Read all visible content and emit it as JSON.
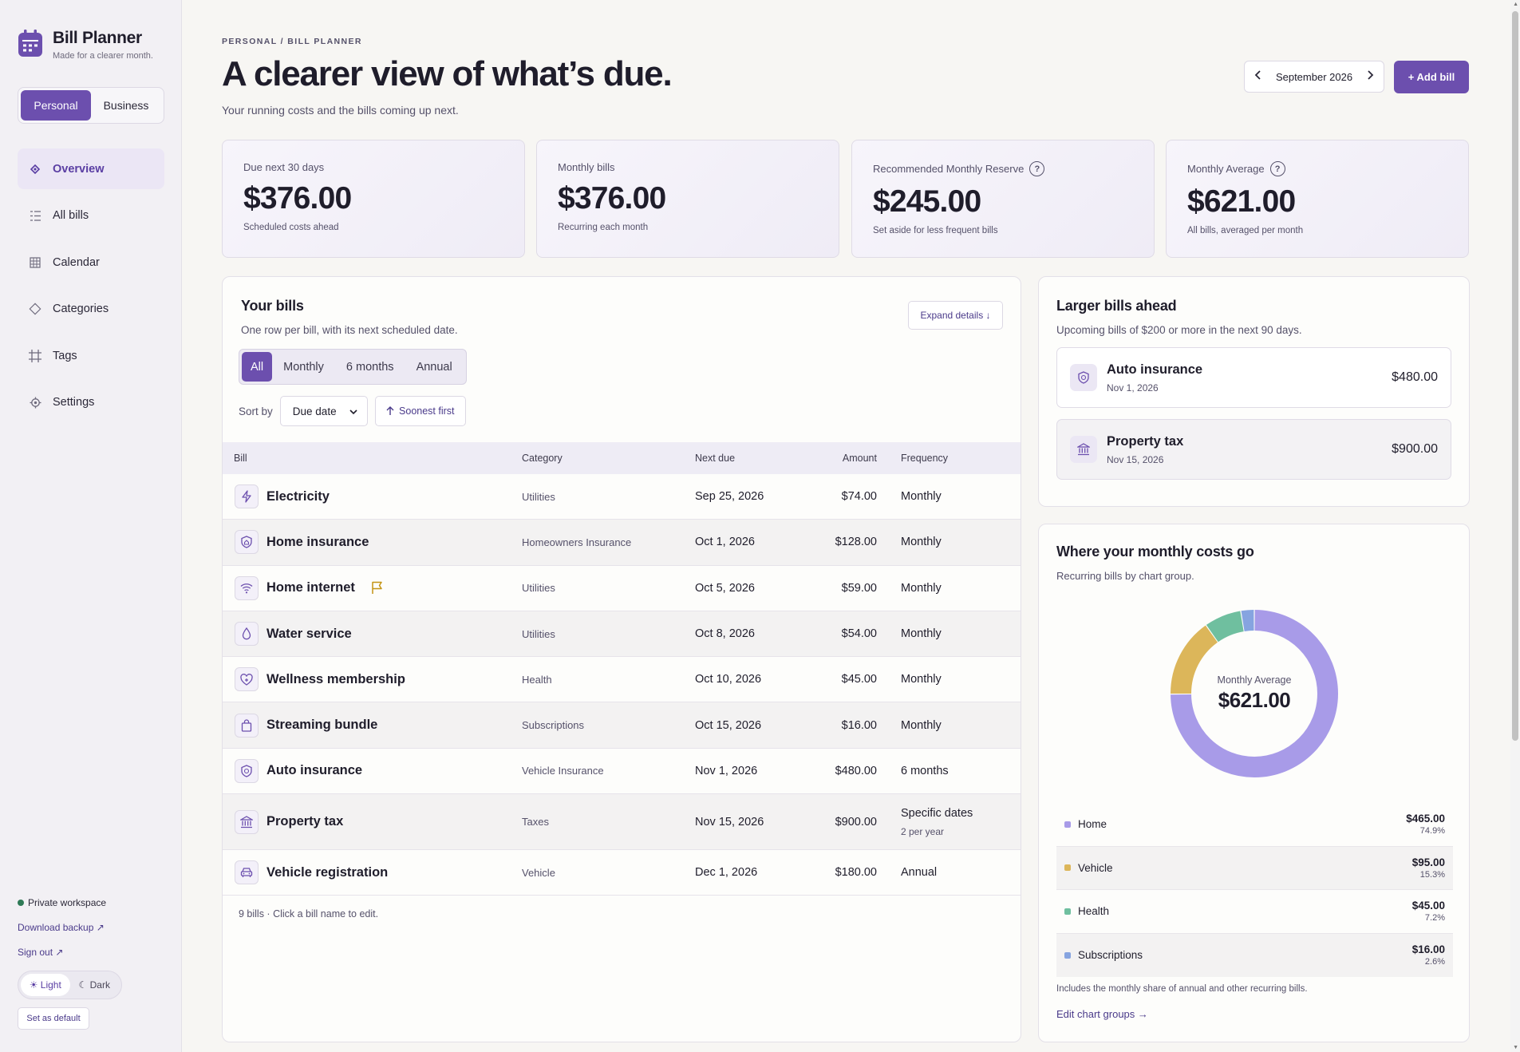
{
  "app": {
    "title": "Bill Planner",
    "tagline": "Made for a clearer month."
  },
  "workspace": {
    "options": [
      "Personal",
      "Business"
    ],
    "selected": "Personal"
  },
  "nav": [
    {
      "label": "Overview",
      "icon": "diamond-icon",
      "active": true
    },
    {
      "label": "All bills",
      "icon": "list-icon"
    },
    {
      "label": "Calendar",
      "icon": "calendar-grid-icon"
    },
    {
      "label": "Categories",
      "icon": "tag-diamond-icon"
    },
    {
      "label": "Tags",
      "icon": "hash-icon"
    },
    {
      "label": "Settings",
      "icon": "gear-icon"
    }
  ],
  "sidebar_footer": {
    "status": "Private workspace",
    "download": "Download backup ↗",
    "signout": "Sign out ↗",
    "theme": {
      "light": "☀ Light",
      "dark": "☾ Dark",
      "selected": "Light"
    },
    "set_default": "Set as default"
  },
  "header": {
    "breadcrumb": "PERSONAL / BILL PLANNER",
    "title": "A clearer view of what’s due.",
    "subtitle": "Your running costs and the bills coming up next.",
    "month": "September 2026",
    "add_bill": "+ Add bill"
  },
  "stats": [
    {
      "label": "Due next 30 days",
      "value": "$376.00",
      "note": "Scheduled costs ahead",
      "help": false
    },
    {
      "label": "Monthly bills",
      "value": "$376.00",
      "note": "Recurring each month",
      "help": false
    },
    {
      "label": "Recommended Monthly Reserve",
      "value": "$245.00",
      "note": "Set aside for less frequent bills",
      "help": true
    },
    {
      "label": "Monthly Average",
      "value": "$621.00",
      "note": "All bills, averaged per month",
      "help": true
    }
  ],
  "bills": {
    "title": "Your bills",
    "subtitle": "One row per bill, with its next scheduled date.",
    "expand": "Expand details ↓",
    "filters": [
      "All",
      "Monthly",
      "6 months",
      "Annual"
    ],
    "active_filter": "All",
    "sort_label": "Sort by",
    "sort_value": "Due date",
    "sort_direction": "Soonest first",
    "columns": [
      "Bill",
      "Category",
      "Next due",
      "Amount",
      "Frequency"
    ],
    "rows": [
      {
        "name": "Electricity",
        "icon": "bolt-icon",
        "category": "Utilities",
        "due": "Sep 25, 2026",
        "amount": "$74.00",
        "frequency": "Monthly",
        "flagged": false
      },
      {
        "name": "Home insurance",
        "icon": "shield-home-icon",
        "category": "Homeowners Insurance",
        "due": "Oct 1, 2026",
        "amount": "$128.00",
        "frequency": "Monthly",
        "flagged": false
      },
      {
        "name": "Home internet",
        "icon": "wifi-icon",
        "category": "Utilities",
        "due": "Oct 5, 2026",
        "amount": "$59.00",
        "frequency": "Monthly",
        "flagged": true
      },
      {
        "name": "Water service",
        "icon": "drop-icon",
        "category": "Utilities",
        "due": "Oct 8, 2026",
        "amount": "$54.00",
        "frequency": "Monthly",
        "flagged": false
      },
      {
        "name": "Wellness membership",
        "icon": "heart-icon",
        "category": "Health",
        "due": "Oct 10, 2026",
        "amount": "$45.00",
        "frequency": "Monthly",
        "flagged": false
      },
      {
        "name": "Streaming bundle",
        "icon": "bag-icon",
        "category": "Subscriptions",
        "due": "Oct 15, 2026",
        "amount": "$16.00",
        "frequency": "Monthly",
        "flagged": false
      },
      {
        "name": "Auto insurance",
        "icon": "shield-car-icon",
        "category": "Vehicle Insurance",
        "due": "Nov 1, 2026",
        "amount": "$480.00",
        "frequency": "6 months",
        "flagged": false
      },
      {
        "name": "Property tax",
        "icon": "bank-icon",
        "category": "Taxes",
        "due": "Nov 15, 2026",
        "amount": "$900.00",
        "frequency": "Specific dates",
        "frequency_sub": "2 per year",
        "flagged": false
      },
      {
        "name": "Vehicle registration",
        "icon": "car-icon",
        "category": "Vehicle",
        "due": "Dec 1, 2026",
        "amount": "$180.00",
        "frequency": "Annual",
        "flagged": false
      }
    ],
    "footer": "9 bills · Click a bill name to edit."
  },
  "larger": {
    "title": "Larger bills ahead",
    "subtitle": "Upcoming bills of $200 or more in the next 90 days.",
    "items": [
      {
        "name": "Auto insurance",
        "date": "Nov 1, 2026",
        "amount": "$480.00",
        "icon": "shield-car-icon"
      },
      {
        "name": "Property tax",
        "date": "Nov 15, 2026",
        "amount": "$900.00",
        "icon": "bank-icon"
      }
    ]
  },
  "costs": {
    "title": "Where your monthly costs go",
    "subtitle": "Recurring bills by chart group.",
    "center_label": "Monthly Average",
    "center_value": "$621.00",
    "groups": [
      {
        "name": "Home",
        "amount": "$465.00",
        "pct": "74.9%",
        "value": 74.9,
        "color": "#a89be8"
      },
      {
        "name": "Vehicle",
        "amount": "$95.00",
        "pct": "15.3%",
        "value": 15.3,
        "color": "#dcb65a"
      },
      {
        "name": "Health",
        "amount": "$45.00",
        "pct": "7.2%",
        "value": 7.2,
        "color": "#6fbf9f"
      },
      {
        "name": "Subscriptions",
        "amount": "$16.00",
        "pct": "2.6%",
        "value": 2.6,
        "color": "#86a4e0"
      }
    ],
    "note": "Includes the monthly share of annual and other recurring bills.",
    "link": "Edit chart groups →"
  }
}
